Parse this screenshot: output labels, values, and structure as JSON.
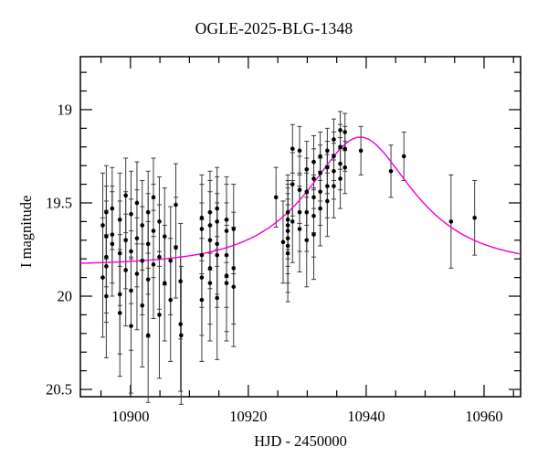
{
  "chart_data": {
    "type": "scatter",
    "title": "OGLE-2025-BLG-1348",
    "xlabel": "HJD - 2450000",
    "ylabel": "I magnitude",
    "xlim": [
      10891.5,
      10966.2
    ],
    "ylim_top_mag": 18.716,
    "ylim_bottom_mag": 20.539,
    "y_axis_inverted": true,
    "grid": false,
    "x_major_ticks": [
      10900,
      10920,
      10940,
      10960
    ],
    "x_major_labels": [
      "10900",
      "10920",
      "10940",
      "10960"
    ],
    "x_minor_ticks": [
      10895,
      10905,
      10910,
      10915,
      10925,
      10930,
      10935,
      10945,
      10950,
      10955,
      10965
    ],
    "y_major_ticks": [
      19,
      19.5,
      20,
      20.5
    ],
    "y_major_labels": [
      "19",
      "19.5",
      "20",
      "20.5"
    ],
    "y_minor_ticks": [
      18.8,
      18.9,
      19.1,
      19.2,
      19.3,
      19.4,
      19.6,
      19.7,
      19.8,
      19.9,
      20.1,
      20.2,
      20.3,
      20.4
    ],
    "point_color": "#000000",
    "errorbar_color": "#3c3c3c",
    "frame_color": "#000000",
    "model_curve": {
      "type": "PSPL",
      "I0": 19.835,
      "t0": 10939.0,
      "tE": 14.0,
      "u0": 0.6,
      "peak_mag": 19.15,
      "color": "#f000d0"
    },
    "points": [
      [
        10895.3,
        19.62,
        0.28
      ],
      [
        10895.3,
        19.9,
        0.32
      ],
      [
        10895.9,
        19.55,
        0.25
      ],
      [
        10895.9,
        19.68,
        0.27
      ],
      [
        10895.9,
        19.79,
        0.3
      ],
      [
        10895.9,
        19.84,
        0.3
      ],
      [
        10895.9,
        20.0,
        0.33
      ],
      [
        10896.9,
        19.53,
        0.22
      ],
      [
        10896.9,
        19.67,
        0.26
      ],
      [
        10896.9,
        19.72,
        0.28
      ],
      [
        10898.2,
        19.59,
        0.25
      ],
      [
        10898.2,
        19.77,
        0.28
      ],
      [
        10898.2,
        19.99,
        0.32
      ],
      [
        10898.2,
        20.09,
        0.34
      ],
      [
        10899.2,
        19.46,
        0.2
      ],
      [
        10899.2,
        19.7,
        0.26
      ],
      [
        10899.2,
        19.86,
        0.3
      ],
      [
        10900.1,
        19.56,
        0.23
      ],
      [
        10900.1,
        19.76,
        0.28
      ],
      [
        10900.1,
        19.97,
        0.32
      ],
      [
        10900.1,
        20.16,
        0.36
      ],
      [
        10901.1,
        19.5,
        0.22
      ],
      [
        10901.1,
        19.69,
        0.26
      ],
      [
        10901.1,
        19.88,
        0.3
      ],
      [
        10902.0,
        19.62,
        0.24
      ],
      [
        10902.0,
        19.81,
        0.29
      ],
      [
        10902.0,
        20.05,
        0.33
      ],
      [
        10903.0,
        19.55,
        0.22
      ],
      [
        10903.0,
        19.72,
        0.27
      ],
      [
        10903.0,
        19.91,
        0.31
      ],
      [
        10903.0,
        20.21,
        0.36
      ],
      [
        10903.9,
        19.47,
        0.21
      ],
      [
        10903.9,
        19.65,
        0.25
      ],
      [
        10903.9,
        19.83,
        0.29
      ],
      [
        10904.9,
        19.6,
        0.24
      ],
      [
        10904.9,
        19.79,
        0.28
      ],
      [
        10904.9,
        20.1,
        0.34
      ],
      [
        10905.8,
        19.68,
        0.26
      ],
      [
        10905.8,
        19.93,
        0.31
      ],
      [
        10906.8,
        19.81,
        0.29
      ],
      [
        10906.8,
        20.02,
        0.33
      ],
      [
        10907.7,
        19.51,
        0.22
      ],
      [
        10907.7,
        19.74,
        0.27
      ],
      [
        10908.5,
        19.92,
        0.31
      ],
      [
        10908.5,
        20.15,
        0.36
      ],
      [
        10908.6,
        20.21,
        0.37
      ],
      [
        10912.1,
        19.58,
        0.23
      ],
      [
        10912.1,
        19.64,
        0.24
      ],
      [
        10912.1,
        19.78,
        0.28
      ],
      [
        10912.1,
        19.9,
        0.31
      ],
      [
        10912.1,
        20.02,
        0.33
      ],
      [
        10913.5,
        19.55,
        0.22
      ],
      [
        10913.5,
        19.62,
        0.24
      ],
      [
        10913.5,
        19.7,
        0.26
      ],
      [
        10913.5,
        19.85,
        0.3
      ],
      [
        10913.5,
        19.93,
        0.31
      ],
      [
        10914.7,
        19.53,
        0.22
      ],
      [
        10914.7,
        19.6,
        0.24
      ],
      [
        10914.7,
        19.72,
        0.27
      ],
      [
        10914.7,
        19.78,
        0.28
      ],
      [
        10914.7,
        20.01,
        0.33
      ],
      [
        10916.3,
        19.59,
        0.23
      ],
      [
        10916.3,
        19.65,
        0.25
      ],
      [
        10916.3,
        19.78,
        0.28
      ],
      [
        10916.3,
        19.89,
        0.3
      ],
      [
        10916.3,
        19.93,
        0.31
      ],
      [
        10917.5,
        19.64,
        0.24
      ],
      [
        10917.5,
        19.85,
        0.3
      ],
      [
        10917.5,
        19.95,
        0.32
      ],
      [
        10924.7,
        19.47,
        0.16
      ],
      [
        10925.9,
        19.71,
        0.22
      ],
      [
        10926.7,
        19.55,
        0.2
      ],
      [
        10926.7,
        19.59,
        0.21
      ],
      [
        10926.7,
        19.62,
        0.22
      ],
      [
        10926.7,
        19.65,
        0.23
      ],
      [
        10926.7,
        19.69,
        0.24
      ],
      [
        10926.7,
        19.73,
        0.25
      ],
      [
        10926.7,
        19.77,
        0.26
      ],
      [
        10927.5,
        19.21,
        0.13
      ],
      [
        10927.5,
        19.4,
        0.17
      ],
      [
        10927.5,
        19.6,
        0.22
      ],
      [
        10928.7,
        19.22,
        0.13
      ],
      [
        10928.7,
        19.43,
        0.18
      ],
      [
        10928.7,
        19.55,
        0.21
      ],
      [
        10928.7,
        19.64,
        0.23
      ],
      [
        10929.9,
        19.32,
        0.15
      ],
      [
        10929.9,
        19.44,
        0.18
      ],
      [
        10929.9,
        19.55,
        0.21
      ],
      [
        10929.9,
        19.7,
        0.25
      ],
      [
        10931.1,
        19.28,
        0.14
      ],
      [
        10931.1,
        19.37,
        0.16
      ],
      [
        10931.1,
        19.47,
        0.19
      ],
      [
        10931.1,
        19.57,
        0.22
      ],
      [
        10931.1,
        19.67,
        0.24
      ],
      [
        10932.2,
        19.25,
        0.13
      ],
      [
        10932.2,
        19.34,
        0.15
      ],
      [
        10932.2,
        19.44,
        0.18
      ],
      [
        10932.2,
        19.53,
        0.2
      ],
      [
        10933.4,
        19.22,
        0.12
      ],
      [
        10933.4,
        19.31,
        0.14
      ],
      [
        10933.4,
        19.41,
        0.17
      ],
      [
        10933.4,
        19.49,
        0.19
      ],
      [
        10934.5,
        19.16,
        0.11
      ],
      [
        10934.5,
        19.25,
        0.13
      ],
      [
        10934.5,
        19.33,
        0.15
      ],
      [
        10934.5,
        19.41,
        0.17
      ],
      [
        10935.6,
        19.11,
        0.1
      ],
      [
        10935.6,
        19.2,
        0.12
      ],
      [
        10935.6,
        19.29,
        0.14
      ],
      [
        10935.6,
        19.37,
        0.16
      ],
      [
        10936.4,
        19.12,
        0.1
      ],
      [
        10936.4,
        19.21,
        0.12
      ],
      [
        10936.4,
        19.31,
        0.14
      ],
      [
        10939.1,
        19.22,
        0.13
      ],
      [
        10944.2,
        19.33,
        0.14
      ],
      [
        10946.4,
        19.25,
        0.13
      ],
      [
        10954.4,
        19.6,
        0.25
      ],
      [
        10958.4,
        19.58,
        0.2
      ]
    ]
  }
}
